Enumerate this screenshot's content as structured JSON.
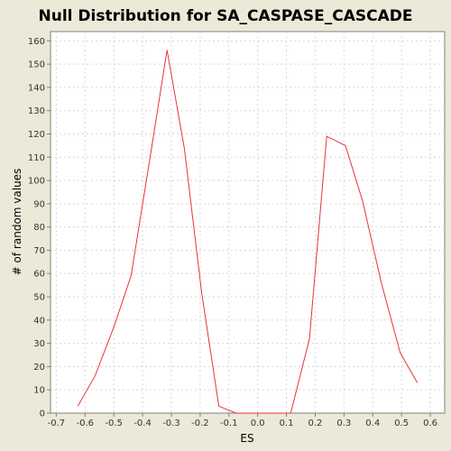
{
  "chart_data": {
    "type": "line",
    "title": "Null Distribution for SA_CASPASE_CASCADE",
    "xlabel": "ES",
    "ylabel": "# of random values",
    "xlim": [
      -0.72,
      0.65
    ],
    "ylim": [
      0,
      164
    ],
    "grid": true,
    "x_ticks": [
      -0.7,
      -0.6,
      -0.5,
      -0.4,
      -0.3,
      -0.2,
      -0.1,
      0.0,
      0.1,
      0.2,
      0.3,
      0.4,
      0.5,
      0.6
    ],
    "x_tick_labels": [
      "-0.7",
      "-0.6",
      "-0.5",
      "-0.4",
      "-0.3",
      "-0.2",
      "-0.1",
      "0.0",
      "0.1",
      "0.2",
      "0.3",
      "0.4",
      "0.5",
      "0.6"
    ],
    "y_ticks": [
      0,
      10,
      20,
      30,
      40,
      50,
      60,
      70,
      80,
      90,
      100,
      110,
      120,
      130,
      140,
      150,
      160
    ],
    "y_tick_labels": [
      "0",
      "10",
      "20",
      "30",
      "40",
      "50",
      "60",
      "70",
      "80",
      "90",
      "100",
      "110",
      "120",
      "130",
      "140",
      "150",
      "160"
    ],
    "series": [
      {
        "color": "#e8333b",
        "x": [
          -0.625,
          -0.565,
          -0.5,
          -0.44,
          -0.375,
          -0.315,
          -0.255,
          -0.195,
          -0.135,
          -0.075,
          -0.015,
          0.05,
          0.115,
          0.18,
          0.24,
          0.305,
          0.365,
          0.43,
          0.495,
          0.555
        ],
        "y": [
          3,
          16,
          37,
          59,
          109,
          156,
          114,
          52,
          3,
          0,
          0,
          0,
          0,
          32,
          119,
          115,
          91,
          56,
          26,
          13
        ]
      }
    ]
  }
}
